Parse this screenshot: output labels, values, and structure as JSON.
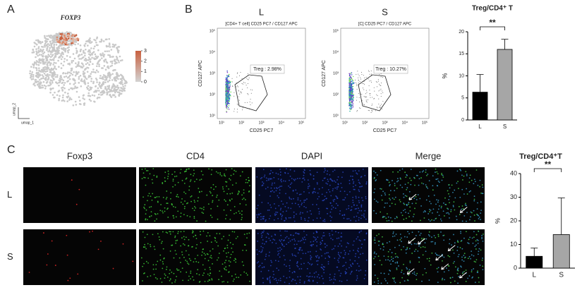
{
  "panels": {
    "a": "A",
    "b": "B",
    "c": "C"
  },
  "umap": {
    "title": "FOXP3",
    "x_label": "umap_1",
    "y_label": "umap_2",
    "colorbar_ticks": [
      0,
      1,
      2,
      3
    ]
  },
  "flow": {
    "x_label": "CD25 PC7",
    "y_label": "CD127 APC",
    "ticks": [
      "10¹",
      "10²",
      "10³",
      "10⁴",
      "10⁵"
    ],
    "plots": [
      {
        "title": "L",
        "subtitle": "[CD4+ T cell] CD25 PC7 / CD127 APC",
        "gate": "Treg : 2.98%"
      },
      {
        "title": "S",
        "subtitle": "[C] CD25 PC7 / CD127 APC",
        "gate": "Treg : 10.27%"
      }
    ]
  },
  "staining": {
    "columns": [
      "Foxp3",
      "CD4",
      "DAPI",
      "Merge"
    ],
    "rows": [
      "L",
      "S"
    ]
  },
  "chart_data": [
    {
      "type": "bar",
      "title": "Treg/CD4⁺ T",
      "ylabel": "%",
      "categories": [
        "L",
        "S"
      ],
      "values": [
        6.3,
        16
      ],
      "errors": [
        4,
        2.3
      ],
      "colors": [
        "#000000",
        "#a6a6a6"
      ],
      "ylim": [
        0,
        20
      ],
      "yticks": [
        0,
        5,
        10,
        15,
        20
      ],
      "significance": "**"
    },
    {
      "type": "bar",
      "title": "Treg/CD4⁺T",
      "ylabel": "%",
      "categories": [
        "L",
        "S"
      ],
      "values": [
        5,
        14.2
      ],
      "errors": [
        3.5,
        15.5
      ],
      "colors": [
        "#000000",
        "#a6a6a6"
      ],
      "ylim": [
        0,
        40
      ],
      "yticks": [
        0,
        10,
        20,
        30,
        40
      ],
      "significance": "**"
    }
  ]
}
